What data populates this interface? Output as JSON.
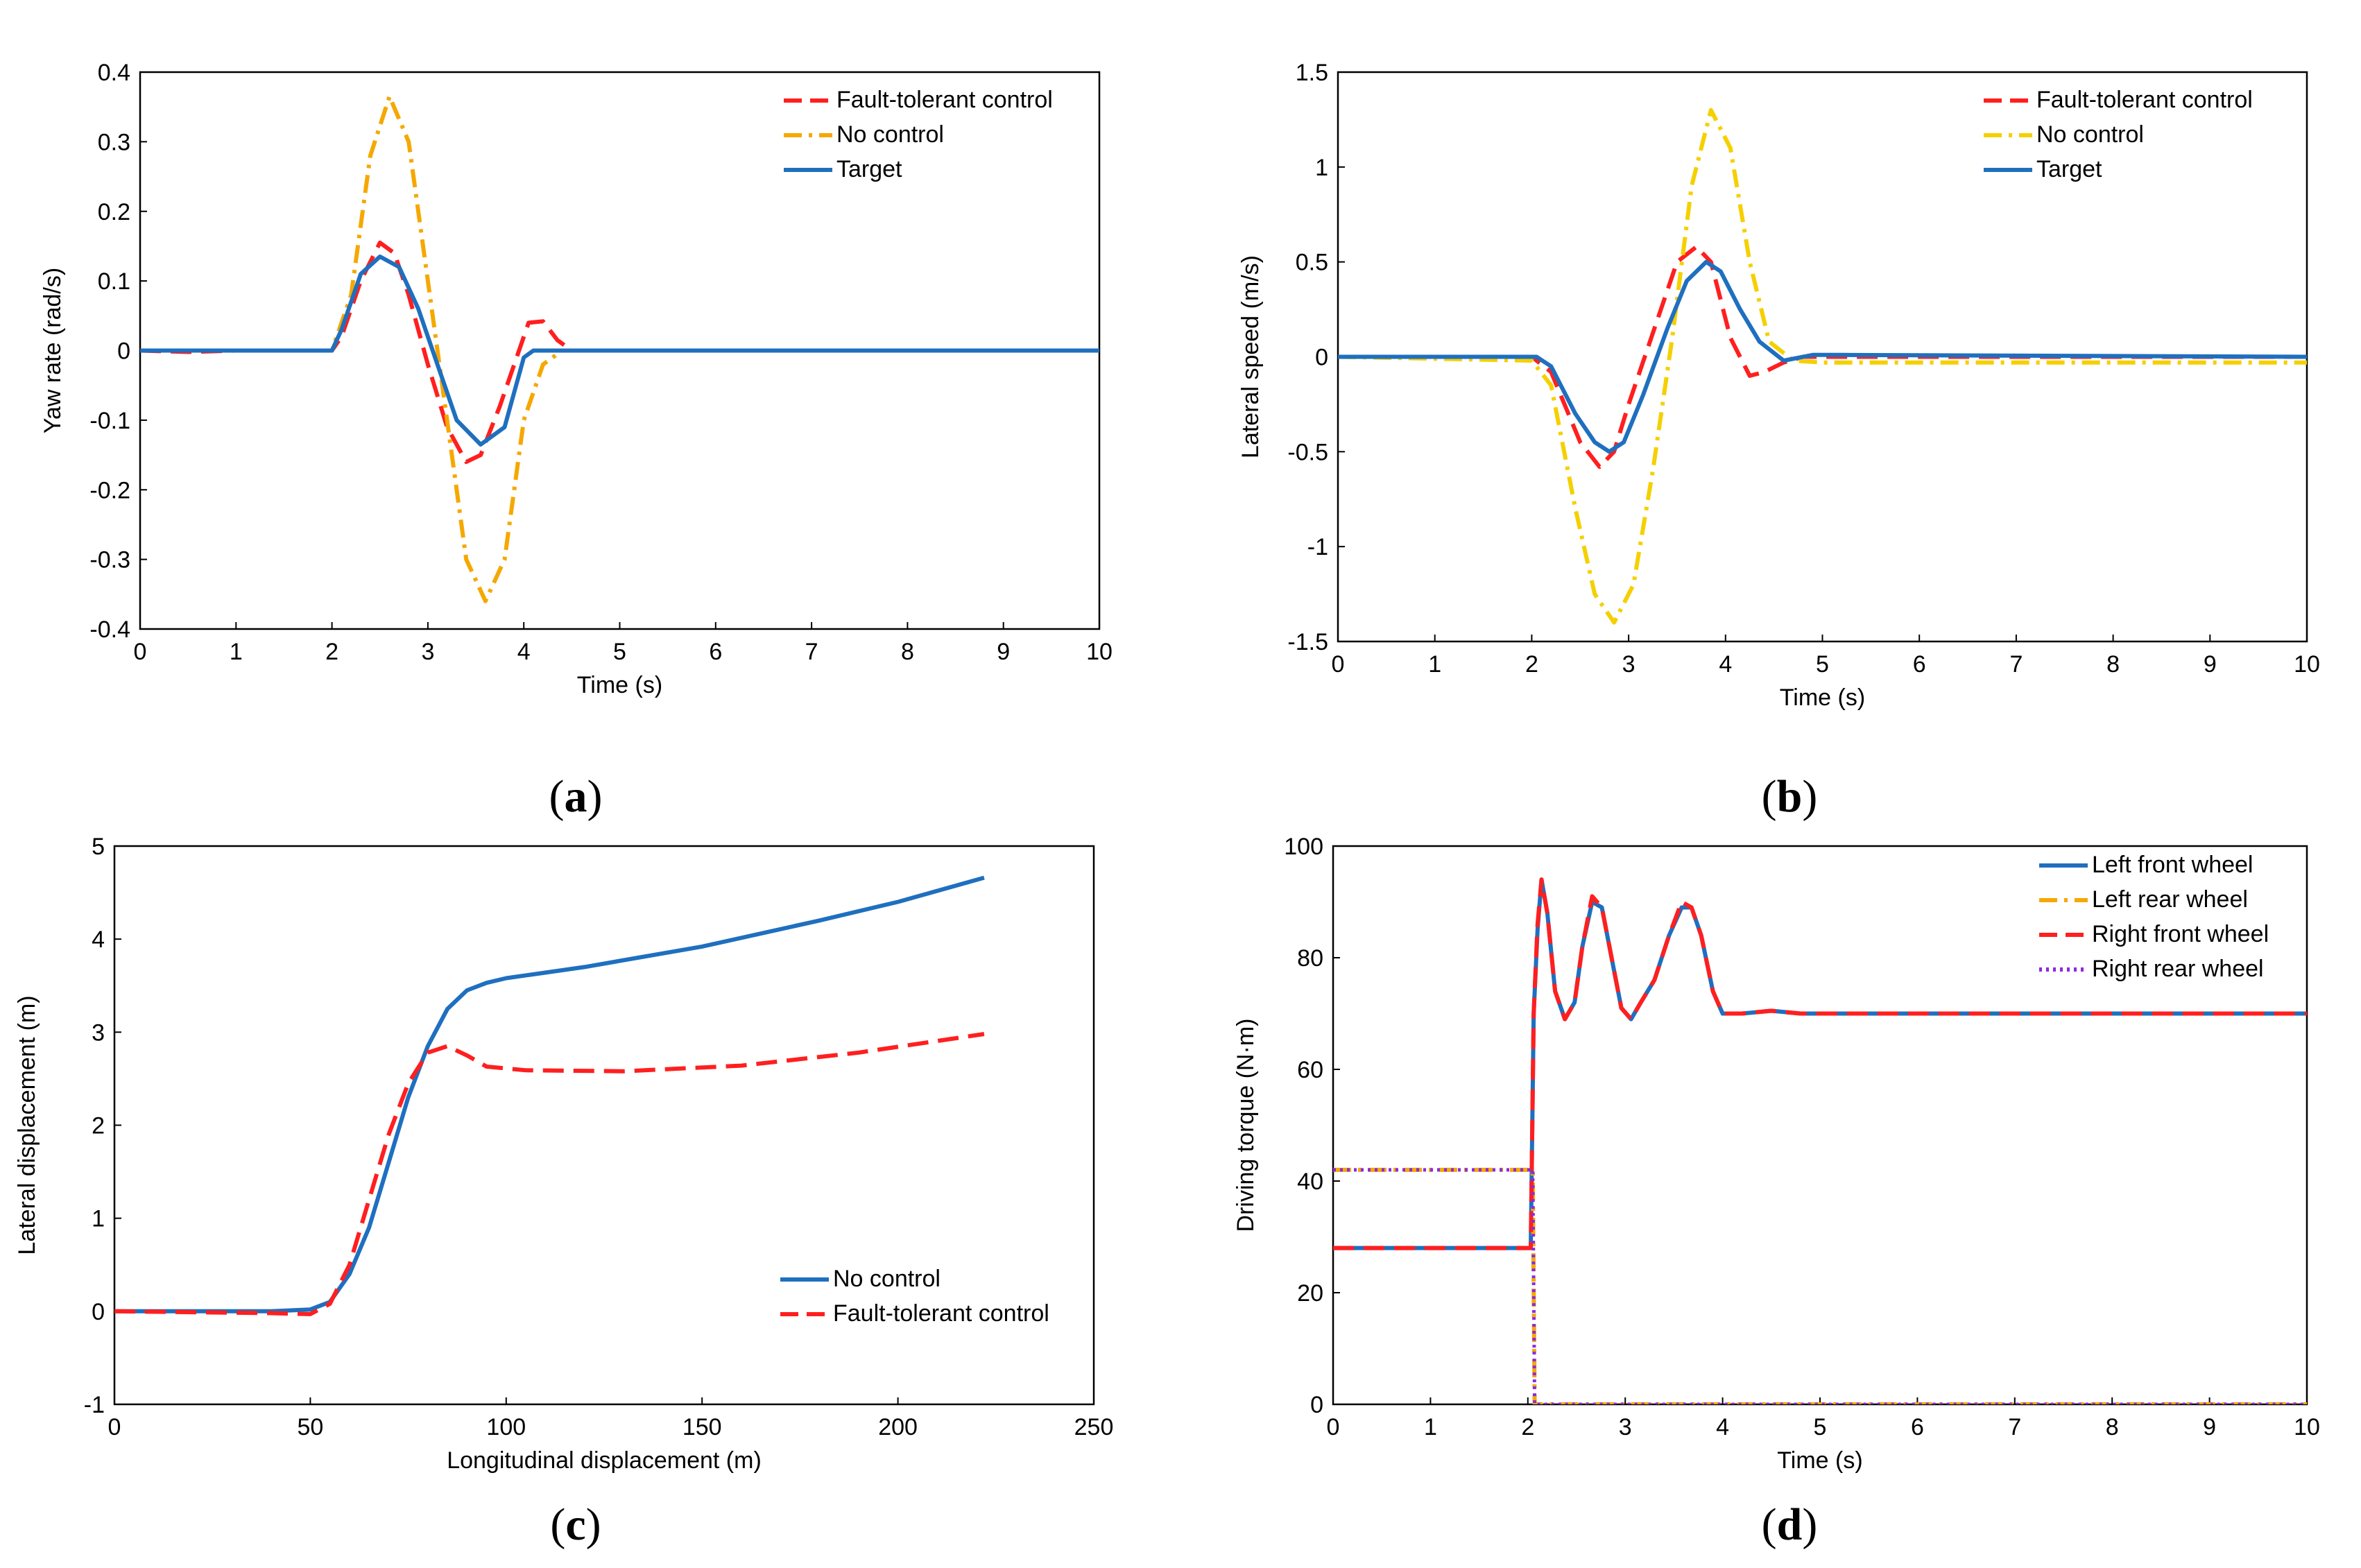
{
  "chart_data": [
    {
      "id": "a",
      "type": "line",
      "caption": "a",
      "xlabel": "Time (s)",
      "ylabel": "Yaw rate (rad/s)",
      "xlim": [
        0,
        10
      ],
      "ylim": [
        -0.4,
        0.4
      ],
      "xticks": [
        0,
        1,
        2,
        3,
        4,
        5,
        6,
        7,
        8,
        9,
        10
      ],
      "xtick_labels": [
        "0",
        "1",
        "2",
        "3",
        "4",
        "5",
        "6",
        "7",
        "8",
        "9",
        "10"
      ],
      "yticks": [
        -0.4,
        -0.3,
        -0.2,
        -0.1,
        0,
        0.1,
        0.2,
        0.3,
        0.4
      ],
      "ytick_labels": [
        "-0.4",
        "-0.3",
        "-0.2",
        "-0.1",
        "0",
        "0.1",
        "0.2",
        "0.3",
        "0.4"
      ],
      "legend_position": "top-right",
      "series": [
        {
          "name": "Fault-tolerant control",
          "color": "#ff1f1f",
          "dash": "dashed",
          "points": [
            [
              0,
              0
            ],
            [
              0.5,
              -0.002
            ],
            [
              1,
              0
            ],
            [
              2,
              0
            ],
            [
              2.1,
              0.02
            ],
            [
              2.3,
              0.1
            ],
            [
              2.5,
              0.155
            ],
            [
              2.65,
              0.14
            ],
            [
              2.8,
              0.08
            ],
            [
              3.0,
              -0.02
            ],
            [
              3.2,
              -0.11
            ],
            [
              3.4,
              -0.16
            ],
            [
              3.55,
              -0.15
            ],
            [
              3.75,
              -0.08
            ],
            [
              3.95,
              0.0
            ],
            [
              4.05,
              0.04
            ],
            [
              4.2,
              0.042
            ],
            [
              4.35,
              0.015
            ],
            [
              4.5,
              0
            ],
            [
              10,
              0
            ]
          ]
        },
        {
          "name": "No control",
          "color": "#f5a800",
          "dash": "dashdot",
          "points": [
            [
              0,
              0
            ],
            [
              2,
              0
            ],
            [
              2.2,
              0.08
            ],
            [
              2.4,
              0.28
            ],
            [
              2.6,
              0.365
            ],
            [
              2.8,
              0.3
            ],
            [
              3.0,
              0.1
            ],
            [
              3.2,
              -0.1
            ],
            [
              3.4,
              -0.3
            ],
            [
              3.6,
              -0.36
            ],
            [
              3.8,
              -0.3
            ],
            [
              4.0,
              -0.1
            ],
            [
              4.2,
              -0.02
            ],
            [
              4.4,
              0
            ],
            [
              10,
              0
            ]
          ]
        },
        {
          "name": "Target",
          "color": "#1f6fbf",
          "dash": "solid",
          "points": [
            [
              0,
              0
            ],
            [
              2,
              0
            ],
            [
              2.1,
              0.03
            ],
            [
              2.3,
              0.11
            ],
            [
              2.5,
              0.135
            ],
            [
              2.7,
              0.12
            ],
            [
              2.9,
              0.06
            ],
            [
              3.1,
              -0.02
            ],
            [
              3.3,
              -0.1
            ],
            [
              3.55,
              -0.135
            ],
            [
              3.8,
              -0.11
            ],
            [
              4.0,
              -0.01
            ],
            [
              4.1,
              0
            ],
            [
              10,
              0
            ]
          ]
        }
      ]
    },
    {
      "id": "b",
      "type": "line",
      "caption": "b",
      "xlabel": "Time (s)",
      "ylabel": "Lateral speed (m/s)",
      "xlim": [
        0,
        10
      ],
      "ylim": [
        -1.5,
        1.5
      ],
      "xticks": [
        0,
        1,
        2,
        3,
        4,
        5,
        6,
        7,
        8,
        9,
        10
      ],
      "xtick_labels": [
        "0",
        "1",
        "2",
        "3",
        "4",
        "5",
        "6",
        "7",
        "8",
        "9",
        "10"
      ],
      "yticks": [
        -1.5,
        -1,
        -0.5,
        0,
        0.5,
        1,
        1.5
      ],
      "ytick_labels": [
        "-1.5",
        "-1",
        "-0.5",
        "0",
        "0.5",
        "1",
        "1.5"
      ],
      "legend_position": "top-right",
      "series": [
        {
          "name": "Fault-tolerant control",
          "color": "#ff1f1f",
          "dash": "dashed",
          "points": [
            [
              0,
              0
            ],
            [
              2,
              0
            ],
            [
              2.2,
              -0.08
            ],
            [
              2.5,
              -0.45
            ],
            [
              2.7,
              -0.58
            ],
            [
              2.85,
              -0.5
            ],
            [
              3.0,
              -0.25
            ],
            [
              3.3,
              0.2
            ],
            [
              3.5,
              0.5
            ],
            [
              3.7,
              0.58
            ],
            [
              3.85,
              0.5
            ],
            [
              4.05,
              0.1
            ],
            [
              4.25,
              -0.1
            ],
            [
              4.4,
              -0.08
            ],
            [
              4.6,
              -0.03
            ],
            [
              4.8,
              0
            ],
            [
              10,
              0
            ]
          ]
        },
        {
          "name": "No control",
          "color": "#f5d000",
          "dash": "dashdot",
          "points": [
            [
              0,
              0
            ],
            [
              2,
              -0.02
            ],
            [
              2.2,
              -0.15
            ],
            [
              2.45,
              -0.8
            ],
            [
              2.65,
              -1.25
            ],
            [
              2.85,
              -1.4
            ],
            [
              3.05,
              -1.2
            ],
            [
              3.25,
              -0.6
            ],
            [
              3.45,
              0.1
            ],
            [
              3.65,
              0.9
            ],
            [
              3.85,
              1.3
            ],
            [
              4.05,
              1.1
            ],
            [
              4.25,
              0.5
            ],
            [
              4.45,
              0.08
            ],
            [
              4.7,
              -0.02
            ],
            [
              5.0,
              -0.03
            ],
            [
              10,
              -0.03
            ]
          ]
        },
        {
          "name": "Target",
          "color": "#1f6fbf",
          "dash": "solid",
          "points": [
            [
              0,
              0
            ],
            [
              2.05,
              0
            ],
            [
              2.2,
              -0.05
            ],
            [
              2.45,
              -0.3
            ],
            [
              2.65,
              -0.45
            ],
            [
              2.8,
              -0.5
            ],
            [
              2.95,
              -0.45
            ],
            [
              3.15,
              -0.2
            ],
            [
              3.4,
              0.15
            ],
            [
              3.6,
              0.4
            ],
            [
              3.8,
              0.5
            ],
            [
              3.95,
              0.45
            ],
            [
              4.15,
              0.25
            ],
            [
              4.35,
              0.08
            ],
            [
              4.6,
              -0.02
            ],
            [
              4.9,
              0.01
            ],
            [
              5.2,
              0.01
            ],
            [
              10,
              0
            ]
          ]
        }
      ]
    },
    {
      "id": "c",
      "type": "line",
      "caption": "c",
      "xlabel": "Longitudinal displacement (m)",
      "ylabel": "Lateral displacement (m)",
      "xlim": [
        0,
        250
      ],
      "ylim": [
        -1,
        5
      ],
      "xticks": [
        0,
        50,
        100,
        150,
        200,
        250
      ],
      "xtick_labels": [
        "0",
        "50",
        "100",
        "150",
        "200",
        "250"
      ],
      "yticks": [
        -1,
        0,
        1,
        2,
        3,
        4,
        5
      ],
      "ytick_labels": [
        "-1",
        "0",
        "1",
        "2",
        "3",
        "4",
        "5"
      ],
      "legend_position": "bottom-right",
      "series": [
        {
          "name": "No control",
          "color": "#1f6fbf",
          "dash": "solid",
          "points": [
            [
              0,
              0
            ],
            [
              40,
              0
            ],
            [
              50,
              0.02
            ],
            [
              55,
              0.1
            ],
            [
              60,
              0.4
            ],
            [
              65,
              0.9
            ],
            [
              70,
              1.6
            ],
            [
              75,
              2.3
            ],
            [
              80,
              2.85
            ],
            [
              85,
              3.25
            ],
            [
              90,
              3.45
            ],
            [
              95,
              3.53
            ],
            [
              100,
              3.58
            ],
            [
              120,
              3.7
            ],
            [
              150,
              3.92
            ],
            [
              180,
              4.2
            ],
            [
              200,
              4.4
            ],
            [
              222,
              4.66
            ]
          ]
        },
        {
          "name": "Fault-tolerant control",
          "color": "#ff1f1f",
          "dash": "dashed",
          "points": [
            [
              0,
              0
            ],
            [
              40,
              -0.02
            ],
            [
              50,
              -0.03
            ],
            [
              55,
              0.08
            ],
            [
              60,
              0.5
            ],
            [
              65,
              1.2
            ],
            [
              70,
              1.9
            ],
            [
              75,
              2.45
            ],
            [
              80,
              2.78
            ],
            [
              85,
              2.85
            ],
            [
              90,
              2.75
            ],
            [
              95,
              2.63
            ],
            [
              105,
              2.59
            ],
            [
              130,
              2.58
            ],
            [
              160,
              2.64
            ],
            [
              190,
              2.78
            ],
            [
              222,
              2.98
            ]
          ]
        }
      ]
    },
    {
      "id": "d",
      "type": "line",
      "caption": "d",
      "xlabel": "Time (s)",
      "ylabel": "Driving torque (N·m)",
      "xlim": [
        0,
        10
      ],
      "ylim": [
        0,
        100
      ],
      "xticks": [
        0,
        1,
        2,
        3,
        4,
        5,
        6,
        7,
        8,
        9,
        10
      ],
      "xtick_labels": [
        "0",
        "1",
        "2",
        "3",
        "4",
        "5",
        "6",
        "7",
        "8",
        "9",
        "10"
      ],
      "yticks": [
        0,
        20,
        40,
        60,
        80,
        100
      ],
      "ytick_labels": [
        "0",
        "20",
        "40",
        "60",
        "80",
        "100"
      ],
      "legend_position": "top-right",
      "series": [
        {
          "name": "Left front wheel",
          "color": "#1f6fbf",
          "dash": "solid",
          "points": [
            [
              0,
              28
            ],
            [
              2.03,
              28
            ],
            [
              2.06,
              70
            ],
            [
              2.1,
              85
            ],
            [
              2.14,
              94
            ],
            [
              2.2,
              88
            ],
            [
              2.28,
              74
            ],
            [
              2.38,
              69
            ],
            [
              2.48,
              72
            ],
            [
              2.56,
              82
            ],
            [
              2.66,
              90
            ],
            [
              2.76,
              89
            ],
            [
              2.86,
              80
            ],
            [
              2.96,
              71
            ],
            [
              3.06,
              69
            ],
            [
              3.16,
              72
            ],
            [
              3.3,
              76
            ],
            [
              3.45,
              84
            ],
            [
              3.58,
              89
            ],
            [
              3.68,
              89
            ],
            [
              3.78,
              84
            ],
            [
              3.9,
              74
            ],
            [
              4.0,
              70
            ],
            [
              4.2,
              70
            ],
            [
              4.5,
              70.5
            ],
            [
              4.8,
              70
            ],
            [
              10,
              70
            ]
          ]
        },
        {
          "name": "Left rear wheel",
          "color": "#f5a800",
          "dash": "dashdot",
          "points": [
            [
              0,
              42
            ],
            [
              2.05,
              42
            ],
            [
              2.07,
              0
            ],
            [
              10,
              0
            ]
          ]
        },
        {
          "name": "Right front wheel",
          "color": "#ff1f1f",
          "dash": "dashed",
          "points": [
            [
              0,
              28
            ],
            [
              2.03,
              28
            ],
            [
              2.06,
              70
            ],
            [
              2.1,
              86
            ],
            [
              2.14,
              94
            ],
            [
              2.2,
              88
            ],
            [
              2.28,
              74
            ],
            [
              2.38,
              69
            ],
            [
              2.48,
              72
            ],
            [
              2.56,
              82
            ],
            [
              2.66,
              91
            ],
            [
              2.76,
              89
            ],
            [
              2.86,
              80
            ],
            [
              2.96,
              71
            ],
            [
              3.06,
              69
            ],
            [
              3.16,
              72
            ],
            [
              3.3,
              76
            ],
            [
              3.45,
              84
            ],
            [
              3.58,
              90
            ],
            [
              3.68,
              89
            ],
            [
              3.78,
              84
            ],
            [
              3.9,
              74
            ],
            [
              4.0,
              70
            ],
            [
              4.2,
              70
            ],
            [
              4.5,
              70.5
            ],
            [
              4.8,
              70
            ],
            [
              10,
              70
            ]
          ]
        },
        {
          "name": "Right rear wheel",
          "color": "#8a2be2",
          "dash": "dotted",
          "points": [
            [
              0,
              42
            ],
            [
              2.05,
              42
            ],
            [
              2.07,
              0
            ],
            [
              10,
              0
            ]
          ]
        }
      ]
    }
  ]
}
